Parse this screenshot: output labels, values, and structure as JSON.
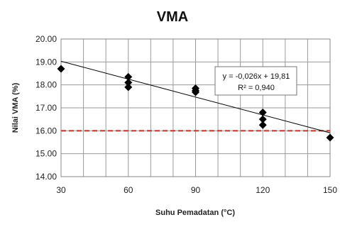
{
  "chart_data": {
    "type": "scatter",
    "title": "VMA",
    "xlabel": "Suhu Pemadatan (°C)",
    "ylabel": "Nilai VMA (%)",
    "xlim": [
      30,
      150
    ],
    "ylim": [
      14,
      20
    ],
    "xticks": [
      "30",
      "60",
      "90",
      "120",
      "150"
    ],
    "yticks": [
      "14.00",
      "15.00",
      "16.00",
      "17.00",
      "18.00",
      "19.00",
      "20.00"
    ],
    "grid": true,
    "series": [
      {
        "marker": "diamond",
        "color": "#000000",
        "points": [
          [
            30,
            18.7
          ],
          [
            60,
            18.35
          ],
          [
            60,
            18.1
          ],
          [
            60,
            17.9
          ],
          [
            90,
            17.85
          ],
          [
            90,
            17.75
          ],
          [
            90,
            17.68
          ],
          [
            120,
            16.8
          ],
          [
            120,
            16.5
          ],
          [
            120,
            16.25
          ],
          [
            150,
            15.7
          ]
        ]
      }
    ],
    "trendline": {
      "slope": -0.026,
      "intercept": 19.81,
      "color": "#000000",
      "equation": "y = -0,026x + 19,81",
      "r2": "R² = 0,940"
    },
    "reference_line": {
      "y": 16.0,
      "color": "#c0302a",
      "style": "dashed"
    }
  }
}
